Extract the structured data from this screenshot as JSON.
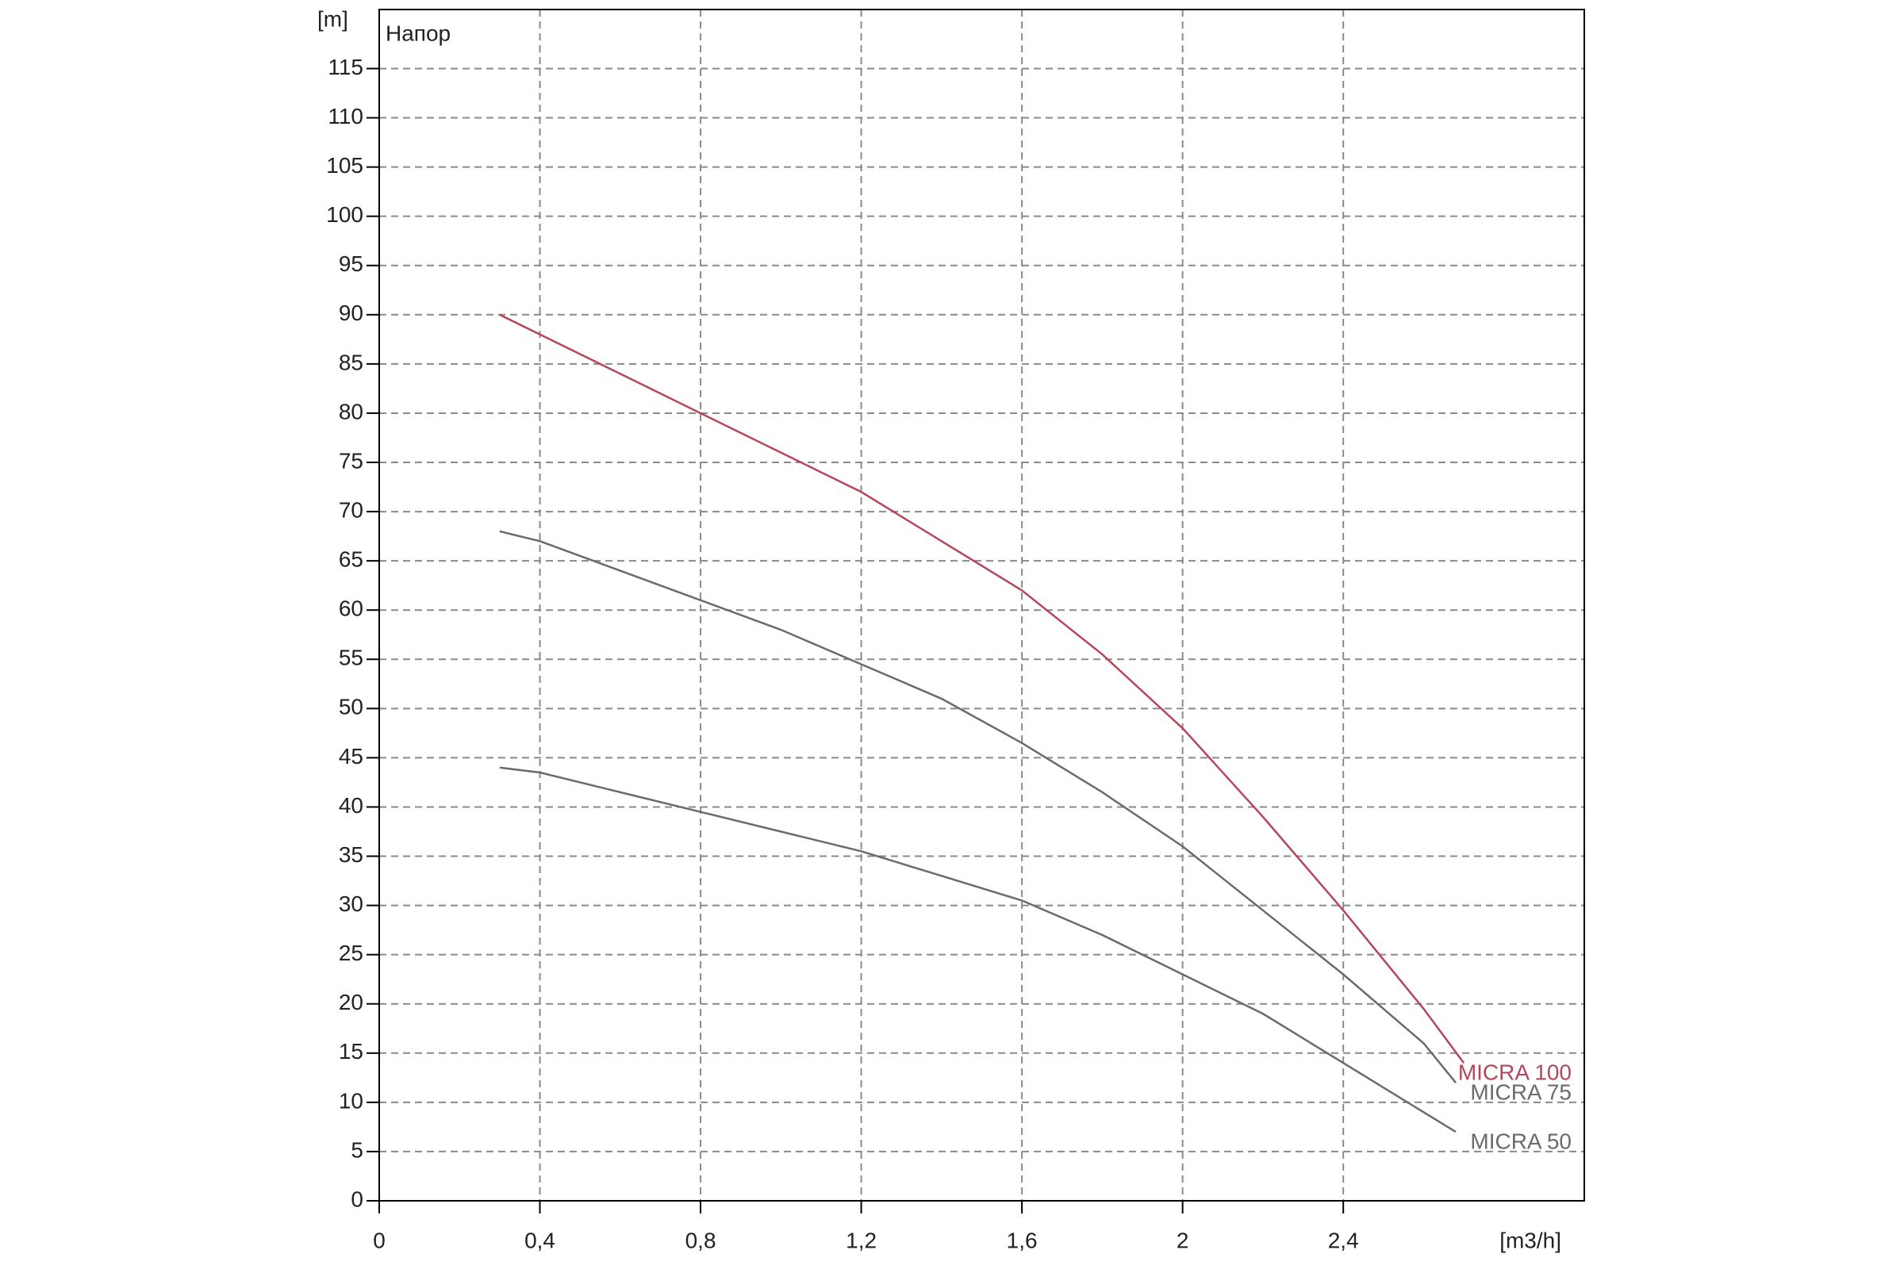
{
  "chart_data": {
    "type": "line",
    "y_label": "[m]",
    "x_label": "[m3/h]",
    "annotation": "Напор",
    "xlim": [
      0,
      3
    ],
    "ylim": [
      0,
      121
    ],
    "xticks": [
      0,
      {
        "value": 0.4,
        "label": "0,4"
      },
      {
        "value": 0.8,
        "label": "0,8"
      },
      {
        "value": 1.2,
        "label": "1,2"
      },
      {
        "value": 1.6,
        "label": "1,6"
      },
      2,
      {
        "value": 2.4,
        "label": "2,4"
      }
    ],
    "yticks": [
      0,
      5,
      10,
      15,
      20,
      25,
      30,
      35,
      40,
      45,
      50,
      55,
      60,
      65,
      70,
      75,
      80,
      85,
      90,
      95,
      100,
      105,
      110,
      115
    ],
    "grid": true,
    "series": [
      {
        "name": "MICRA 100",
        "color": "#b5475a",
        "x": [
          0.3,
          0.4,
          0.6,
          0.8,
          1.0,
          1.2,
          1.4,
          1.6,
          1.8,
          2.0,
          2.2,
          2.4,
          2.6,
          2.7
        ],
        "values": [
          90,
          88,
          84,
          80,
          76,
          72,
          67,
          62,
          55.5,
          48,
          39,
          29.5,
          19.5,
          14
        ]
      },
      {
        "name": "MICRA 75",
        "color": "#6b6b6b",
        "x": [
          0.3,
          0.4,
          0.6,
          0.8,
          1.0,
          1.2,
          1.4,
          1.6,
          1.8,
          2.0,
          2.2,
          2.4,
          2.6,
          2.68
        ],
        "values": [
          68,
          67,
          64,
          61,
          58,
          54.5,
          51,
          46.5,
          41.5,
          36,
          29.5,
          23,
          16,
          12
        ]
      },
      {
        "name": "MICRA 50",
        "color": "#6b6b6b",
        "x": [
          0.3,
          0.4,
          0.6,
          0.8,
          1.0,
          1.2,
          1.4,
          1.6,
          1.8,
          2.0,
          2.2,
          2.4,
          2.6,
          2.68
        ],
        "values": [
          44,
          43.5,
          41.5,
          39.5,
          37.5,
          35.5,
          33,
          30.5,
          27,
          23,
          19,
          14,
          9,
          7
        ]
      }
    ]
  }
}
